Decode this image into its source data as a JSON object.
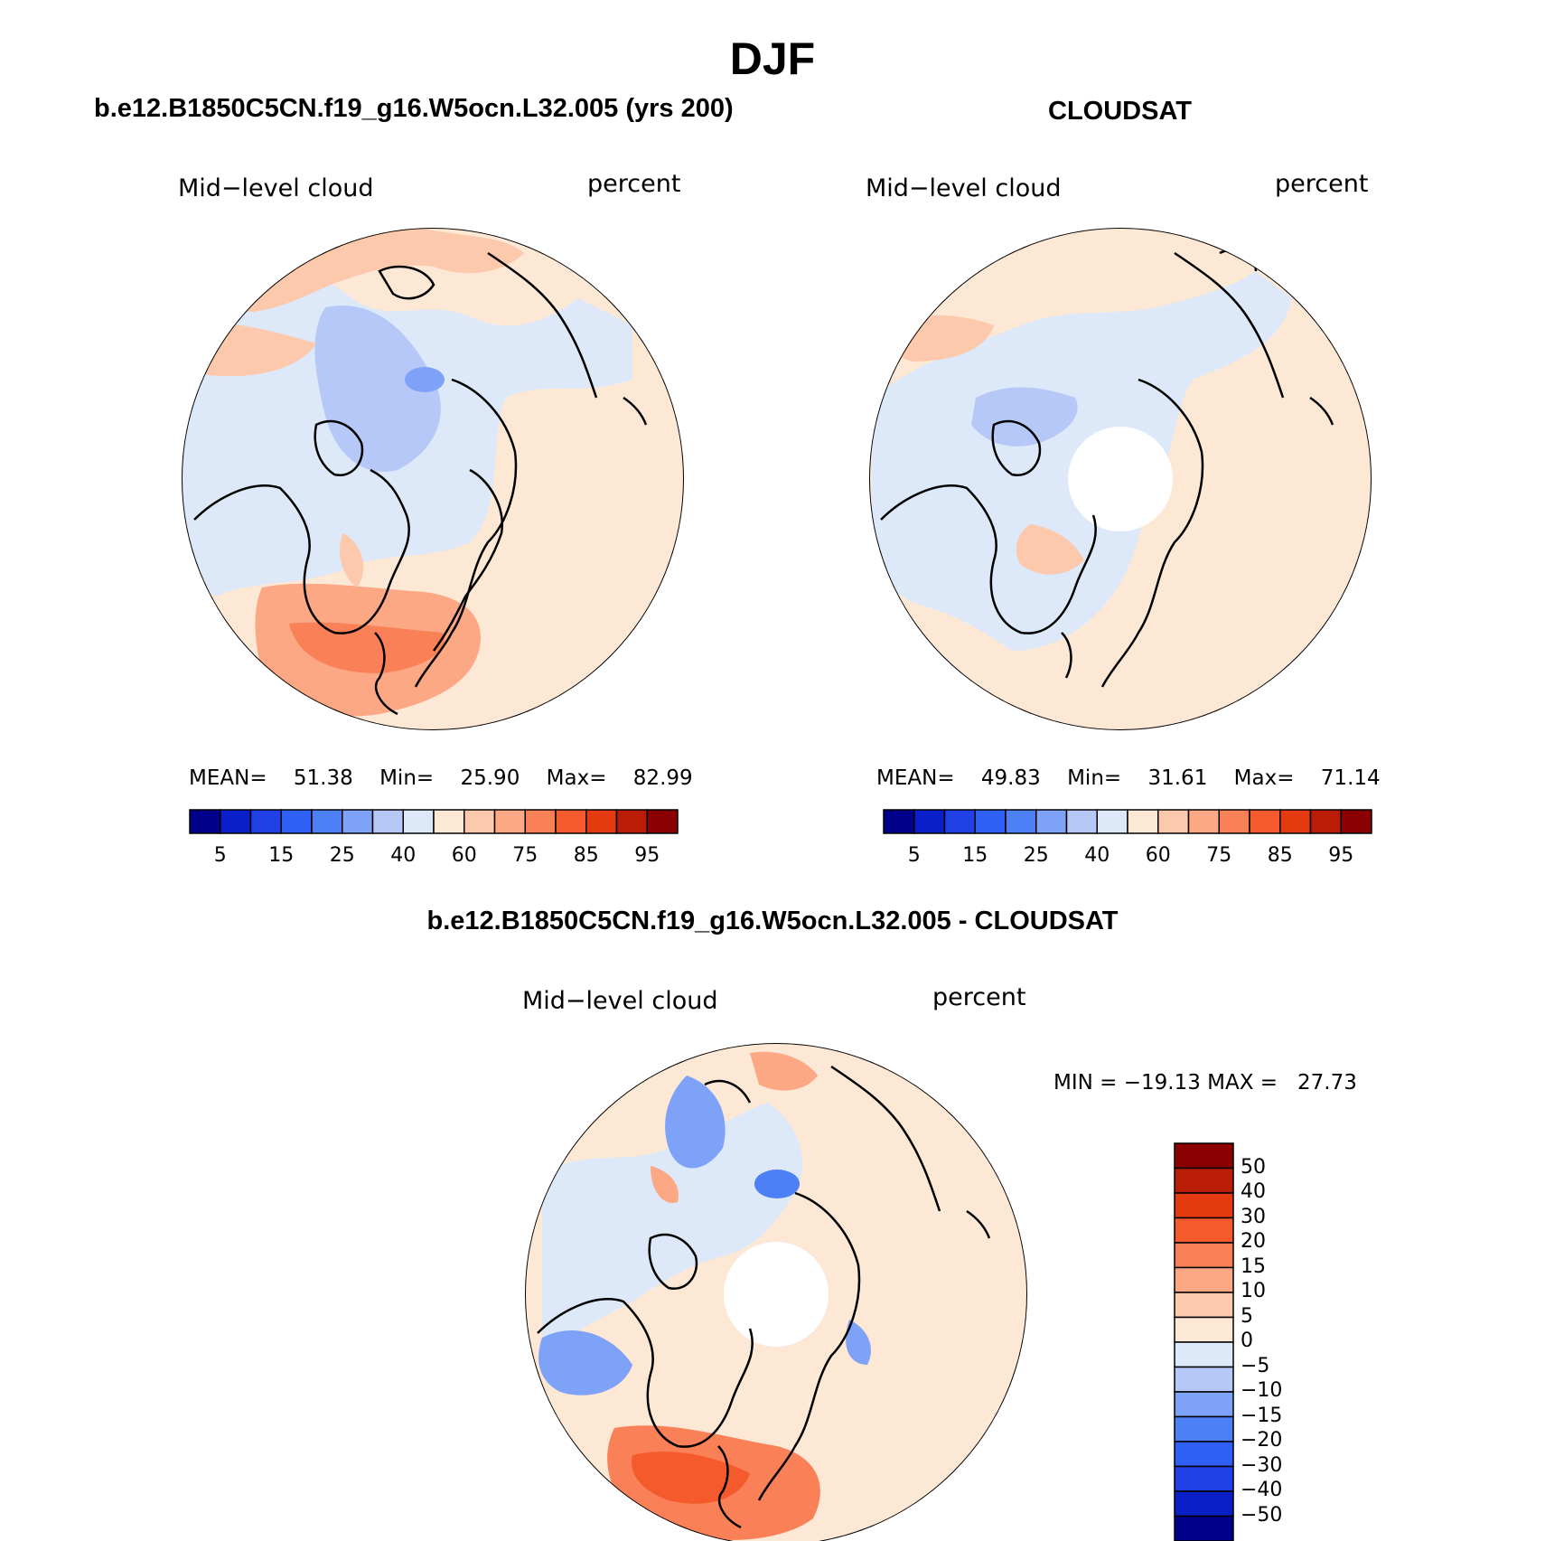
{
  "figure": {
    "title": "DJF",
    "diff_title": "b.e12.B1850C5CN.f19_g16.W5ocn.L32.005 - CLOUDSAT"
  },
  "panels": [
    {
      "title": "b.e12.B1850C5CN.f19_g16.W5ocn.L32.005 (yrs 200)",
      "left_label": "Mid−level cloud",
      "right_label": "percent",
      "stats": {
        "mean_label": "MEAN=",
        "mean": "51.38",
        "min_label": "Min=",
        "min": "25.90",
        "max_label": "Max=",
        "max": "82.99"
      }
    },
    {
      "title": "CLOUDSAT",
      "left_label": "Mid−level cloud",
      "right_label": "percent",
      "stats": {
        "mean_label": "MEAN=",
        "mean": "49.83",
        "min_label": "Min=",
        "min": "31.61",
        "max_label": "Max=",
        "max": "71.14"
      }
    },
    {
      "title": "",
      "left_label": "Mid−level cloud",
      "right_label": "percent",
      "stats": {
        "minmax_text": "MIN = −19.13 MAX =   27.73"
      }
    }
  ],
  "abs_colorbar": {
    "tick_labels": [
      "5",
      "15",
      "25",
      "40",
      "60",
      "75",
      "85",
      "95"
    ],
    "colors": [
      "#00008b",
      "#0b1fc8",
      "#1f40e6",
      "#2f60f5",
      "#4d7ff5",
      "#7ea2f7",
      "#b5c8f7",
      "#dde9f9",
      "#fde8d6",
      "#fcc9ad",
      "#fca884",
      "#fa8057",
      "#f55a2c",
      "#e33a0f",
      "#b91d06",
      "#8b0000"
    ]
  },
  "diff_colorbar": {
    "tick_labels": [
      "50",
      "40",
      "30",
      "20",
      "15",
      "10",
      "5",
      "0",
      "−5",
      "−10",
      "−15",
      "−20",
      "−30",
      "−40",
      "−50"
    ],
    "colors": [
      "#8b0000",
      "#b91d06",
      "#e33a0f",
      "#f55a2c",
      "#fa8057",
      "#fca884",
      "#fcc9ad",
      "#fde8d6",
      "#dde9f9",
      "#b5c8f7",
      "#7ea2f7",
      "#4d7ff5",
      "#2f60f5",
      "#1f40e6",
      "#0b1fc8",
      "#00008b"
    ]
  },
  "chart_data": [
    {
      "type": "heatmap",
      "title": "b.e12.B1850C5CN.f19_g16.W5ocn.L32.005 (yrs 200)",
      "variable": "Mid−level cloud",
      "units": "percent",
      "projection": "north polar stereographic",
      "mean": 51.38,
      "min": 25.9,
      "max": 82.99,
      "contour_levels": [
        5,
        10,
        15,
        20,
        25,
        30,
        40,
        50,
        60,
        65,
        75,
        80,
        85,
        90,
        95
      ]
    },
    {
      "type": "heatmap",
      "title": "CLOUDSAT",
      "variable": "Mid−level cloud",
      "units": "percent",
      "projection": "north polar stereographic",
      "mean": 49.83,
      "min": 31.61,
      "max": 71.14,
      "contour_levels": [
        5,
        10,
        15,
        20,
        25,
        30,
        40,
        50,
        60,
        65,
        75,
        80,
        85,
        90,
        95
      ]
    },
    {
      "type": "heatmap",
      "title": "b.e12.B1850C5CN.f19_g16.W5ocn.L32.005 - CLOUDSAT",
      "variable": "Mid−level cloud",
      "units": "percent",
      "projection": "north polar stereographic",
      "min": -19.13,
      "max": 27.73,
      "contour_levels": [
        -50,
        -40,
        -30,
        -20,
        -15,
        -10,
        -5,
        0,
        5,
        10,
        15,
        20,
        30,
        40,
        50
      ]
    }
  ]
}
